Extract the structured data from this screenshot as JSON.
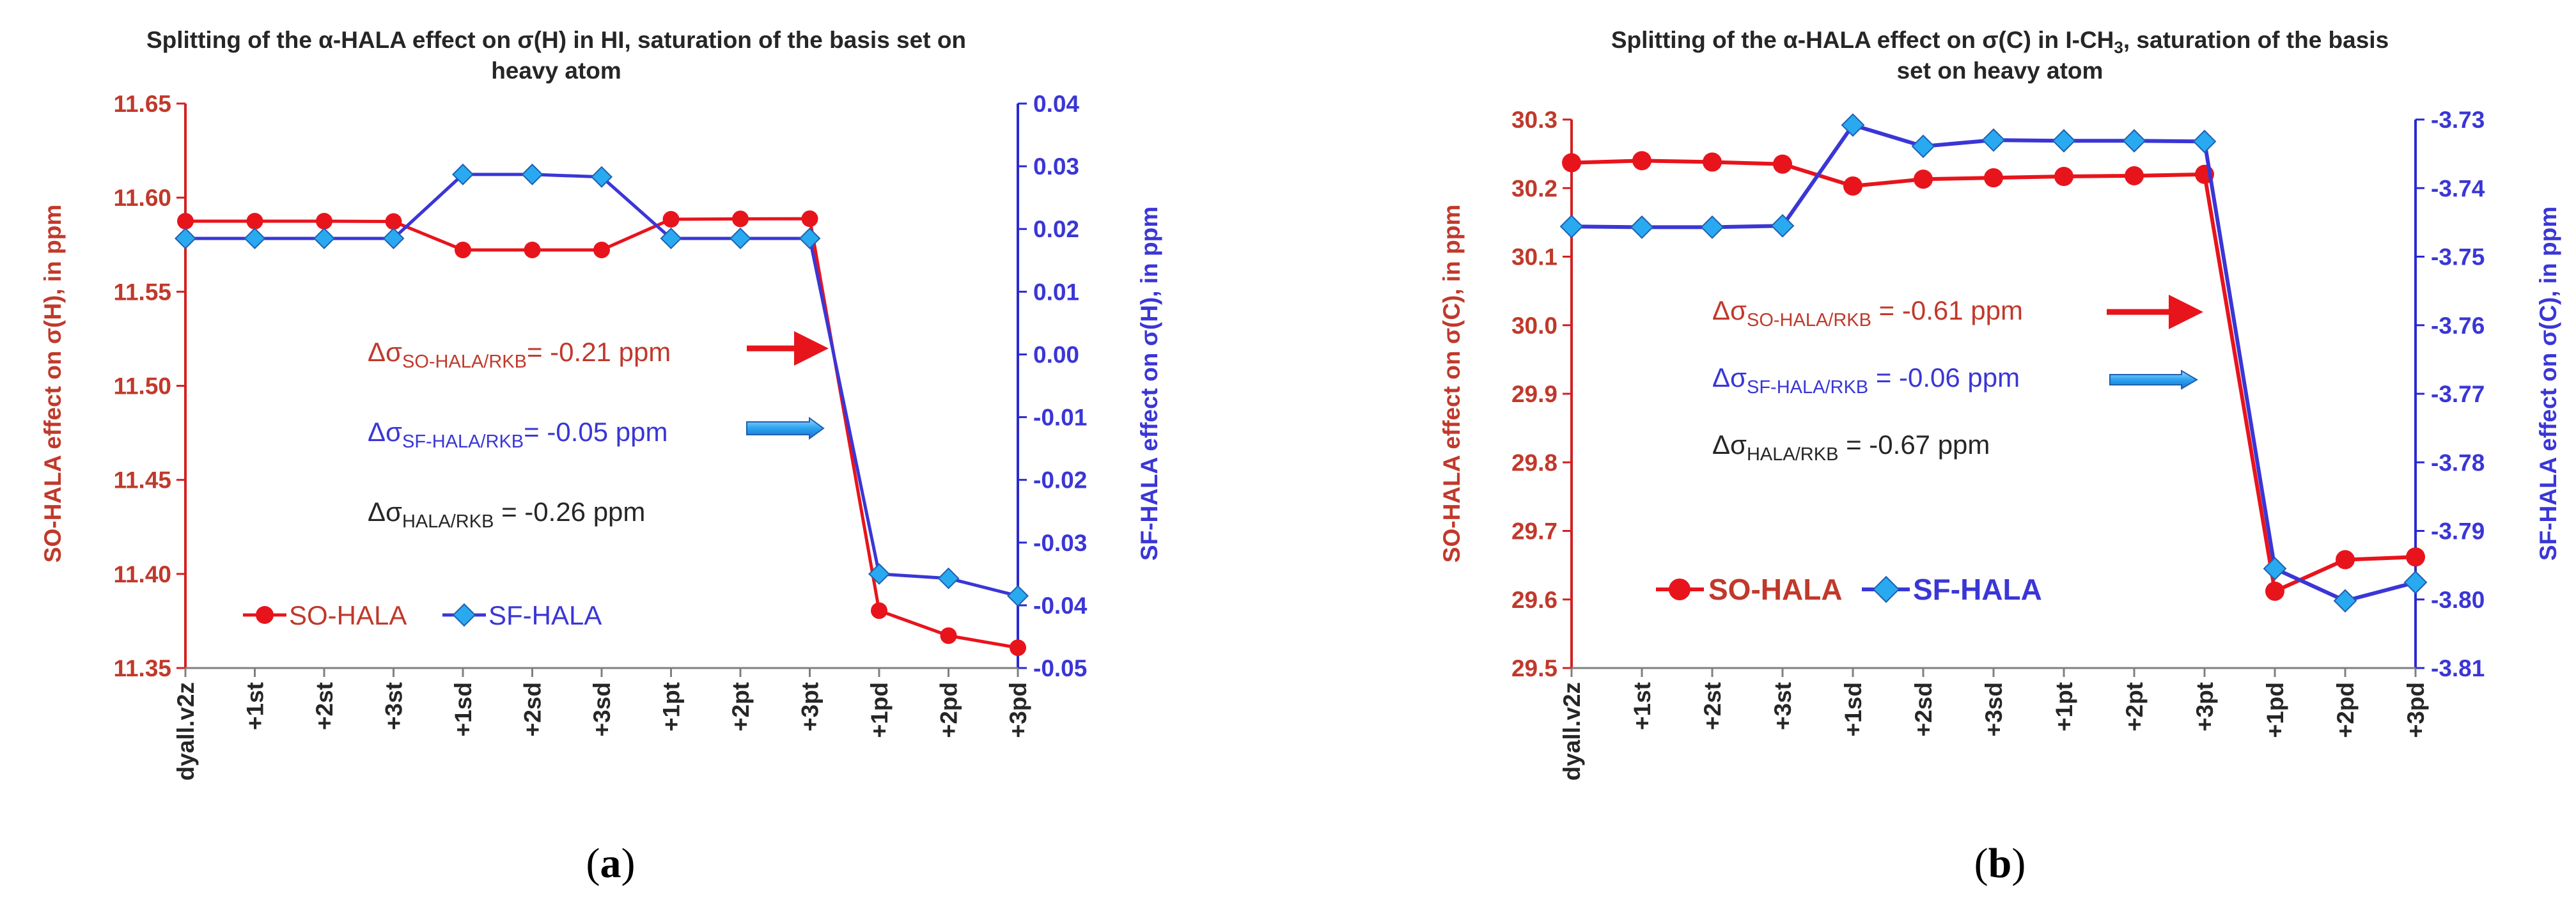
{
  "chart_data": [
    {
      "type": "line",
      "panel_label": "a",
      "title_line1": "Splitting of the  α-HALA effect on σ(H) in HI, saturation of the basis set on",
      "title_line2": "heavy atom",
      "ylabel_left": "SO-HALA effect on σ(H), in ppm",
      "ylabel_right": "SF-HALA effect on σ(H), in ppm",
      "categories": [
        "dyall.v2z",
        "+1st",
        "+2st",
        "+3st",
        "+1sd",
        "+2sd",
        "+3sd",
        "+1pt",
        "+2pt",
        "+3pt",
        "+1pd",
        "+2pd",
        "+3pd"
      ],
      "left_axis": {
        "min": 11.35,
        "max": 11.65,
        "ticks": [
          "11.35",
          "11.40",
          "11.45",
          "11.50",
          "11.55",
          "11.60",
          "11.65"
        ]
      },
      "right_axis": {
        "min": -0.05,
        "max": 0.04,
        "ticks": [
          "-0.05",
          "-0.04",
          "-0.03",
          "-0.02",
          "-0.01",
          "0.00",
          "0.01",
          "0.02",
          "0.03",
          "0.04"
        ]
      },
      "series": [
        {
          "name": "SO-HALA",
          "axis": "left",
          "color": "#e8141c",
          "values": [
            11.5875,
            11.5875,
            11.5875,
            11.5873,
            11.5722,
            11.5722,
            11.5722,
            11.5885,
            11.5887,
            11.5888,
            11.3805,
            11.3672,
            11.3608
          ]
        },
        {
          "name": "SF-HALA",
          "axis": "right",
          "color": "#3a36d6",
          "values": [
            0.0185,
            0.0185,
            0.0185,
            0.0185,
            0.0287,
            0.0287,
            0.0283,
            0.0185,
            0.0185,
            0.0185,
            -0.035,
            -0.0357,
            -0.0385
          ]
        }
      ],
      "annotations": [
        {
          "prefix": "Δσ",
          "sub": "SO-HALA/RKB",
          "suffix": "= -0.21 ppm",
          "color": "#c0392b",
          "arrow": "red"
        },
        {
          "prefix": "Δσ",
          "sub": "SF-HALA/RKB",
          "suffix": "= -0.05 ppm",
          "color": "#3a36d6",
          "arrow": "blue"
        },
        {
          "prefix": "Δσ",
          "sub": "HALA/RKB",
          "suffix": " = -0.26 ppm",
          "color": "#262626",
          "arrow": "none"
        }
      ],
      "legend": [
        "SO-HALA",
        "SF-HALA"
      ]
    },
    {
      "type": "line",
      "panel_label": "b",
      "title_line1": "Splitting of the α-HALA effect on σ(C) in I-CH",
      "title_line1_sub": "3",
      "title_line1_rest": ", saturation of the  basis",
      "title_line2": "set on heavy atom",
      "ylabel_left": "SO-HALA effect on σ(C), in ppm",
      "ylabel_right": "SF-HALA effect on σ(C), in ppm",
      "categories": [
        "dyall.v2z",
        "+1st",
        "+2st",
        "+3st",
        "+1sd",
        "+2sd",
        "+3sd",
        "+1pt",
        "+2pt",
        "+3pt",
        "+1pd",
        "+2pd",
        "+3pd"
      ],
      "left_axis": {
        "min": 29.5,
        "max": 30.3,
        "ticks": [
          "29.5",
          "29.6",
          "29.7",
          "29.8",
          "29.9",
          "30.0",
          "30.1",
          "30.2",
          "30.3"
        ]
      },
      "right_axis": {
        "min": -3.81,
        "max": -3.73,
        "ticks": [
          "-3.81",
          "-3.80",
          "-3.79",
          "-3.78",
          "-3.77",
          "-3.76",
          "-3.75",
          "-3.74",
          "-3.73"
        ]
      },
      "series": [
        {
          "name": "SO-HALA",
          "axis": "left",
          "color": "#e8141c",
          "values": [
            30.237,
            30.24,
            30.238,
            30.235,
            30.203,
            30.213,
            30.215,
            30.217,
            30.218,
            30.22,
            29.612,
            29.658,
            29.662
          ]
        },
        {
          "name": "SF-HALA",
          "axis": "right",
          "color": "#3a36d6",
          "values": [
            -3.7456,
            -3.7457,
            -3.7457,
            -3.7455,
            -3.7308,
            -3.7339,
            -3.733,
            -3.7331,
            -3.7331,
            -3.7332,
            -3.7955,
            -3.8002,
            -3.7975
          ]
        }
      ],
      "annotations": [
        {
          "prefix": "Δσ",
          "sub": "SO-HALA/RKB",
          "suffix": " = -0.61 ppm",
          "color": "#c0392b",
          "arrow": "red"
        },
        {
          "prefix": "Δσ",
          "sub": "SF-HALA/RKB",
          "suffix": " = -0.06 ppm",
          "color": "#3a36d6",
          "arrow": "blue"
        },
        {
          "prefix": "Δσ",
          "sub": "HALA/RKB",
          "suffix": " = -0.67 ppm",
          "color": "#262626",
          "arrow": "none"
        }
      ],
      "legend": [
        "SO-HALA",
        "SF-HALA"
      ]
    }
  ]
}
